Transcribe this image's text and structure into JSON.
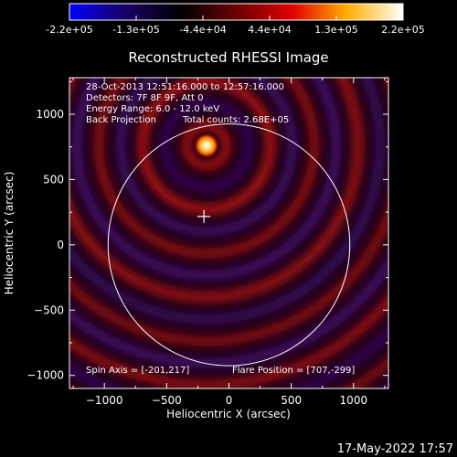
{
  "colorbar": {
    "tick_labels": [
      "-2.2e+05",
      "-1.3e+05",
      "-4.4e+04",
      "4.4e+04",
      "1.3e+05",
      "2.2e+05"
    ],
    "gradient_colors": [
      "#0000ff",
      "#1a0066",
      "#000000",
      "#6b0000",
      "#e00000",
      "#ffb000",
      "#ffffff"
    ]
  },
  "image_info": {
    "time_range": "28-Oct-2013 12:51:16.000 to 12:57:16.000",
    "detectors": "Detectors: 7F 8F 9F, Att 0",
    "energy_range": "Energy Range: 6.0 - 12.0 keV",
    "method": "Back Projection",
    "total_counts": "Total counts: 2.68E+05",
    "spin_axis": "Spin Axis = [-201,217]",
    "flare_position": "Flare Position = [707,-299]"
  },
  "timestamp": "17-May-2022 17:57",
  "chart_data": {
    "type": "heatmap",
    "title": "Reconstructed RHESSI Image",
    "xlabel": "Heliocentric X (arcsec)",
    "ylabel": "Heliocentric Y (arcsec)",
    "xlim": [
      -1280,
      1280
    ],
    "ylim": [
      -1100,
      1280
    ],
    "x_ticks": [
      -1000,
      -500,
      0,
      500,
      1000
    ],
    "y_ticks": [
      -1000,
      -500,
      0,
      500,
      1000
    ],
    "x_tick_labels": [
      "−1000",
      "−500",
      "0",
      "500",
      "1000"
    ],
    "y_tick_labels": [
      "−1000",
      "−500",
      "0",
      "500",
      "1000"
    ],
    "colorscale_range": [
      -220000,
      220000
    ],
    "solar_disk": {
      "center": [
        0,
        0
      ],
      "radius_arcsec": 970
    },
    "crosshair_position": [
      -201,
      217
    ],
    "bright_source": {
      "x": -180,
      "y": 760
    }
  }
}
